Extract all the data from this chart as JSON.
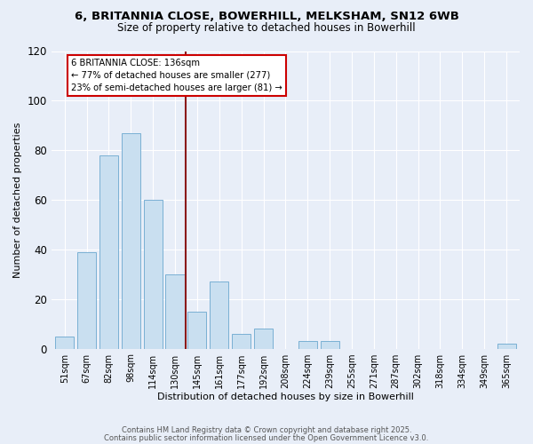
{
  "title_line1": "6, BRITANNIA CLOSE, BOWERHILL, MELKSHAM, SN12 6WB",
  "title_line2": "Size of property relative to detached houses in Bowerhill",
  "xlabel": "Distribution of detached houses by size in Bowerhill",
  "ylabel": "Number of detached properties",
  "bar_labels": [
    "51sqm",
    "67sqm",
    "82sqm",
    "98sqm",
    "114sqm",
    "130sqm",
    "145sqm",
    "161sqm",
    "177sqm",
    "192sqm",
    "208sqm",
    "224sqm",
    "239sqm",
    "255sqm",
    "271sqm",
    "287sqm",
    "302sqm",
    "318sqm",
    "334sqm",
    "349sqm",
    "365sqm"
  ],
  "bar_values": [
    5,
    39,
    78,
    87,
    60,
    30,
    15,
    27,
    6,
    8,
    0,
    3,
    3,
    0,
    0,
    0,
    0,
    0,
    0,
    0,
    2
  ],
  "bar_color": "#c9dff0",
  "bar_edgecolor": "#7ab0d4",
  "vline_x": 5.5,
  "vline_color": "#8b1a1a",
  "annotation_title": "6 BRITANNIA CLOSE: 136sqm",
  "annotation_line1": "← 77% of detached houses are smaller (277)",
  "annotation_line2": "23% of semi-detached houses are larger (81) →",
  "annotation_box_facecolor": "#ffffff",
  "annotation_box_edgecolor": "#cc0000",
  "footer_line1": "Contains HM Land Registry data © Crown copyright and database right 2025.",
  "footer_line2": "Contains public sector information licensed under the Open Government Licence v3.0.",
  "ylim": [
    0,
    120
  ],
  "yticks": [
    0,
    20,
    40,
    60,
    80,
    100,
    120
  ],
  "background_color": "#e8eef8",
  "plot_background": "#e8eef8",
  "title_fontsize": 9.5,
  "subtitle_fontsize": 8.5,
  "bar_fontsize": 7,
  "ylabel_fontsize": 8,
  "xlabel_fontsize": 8
}
